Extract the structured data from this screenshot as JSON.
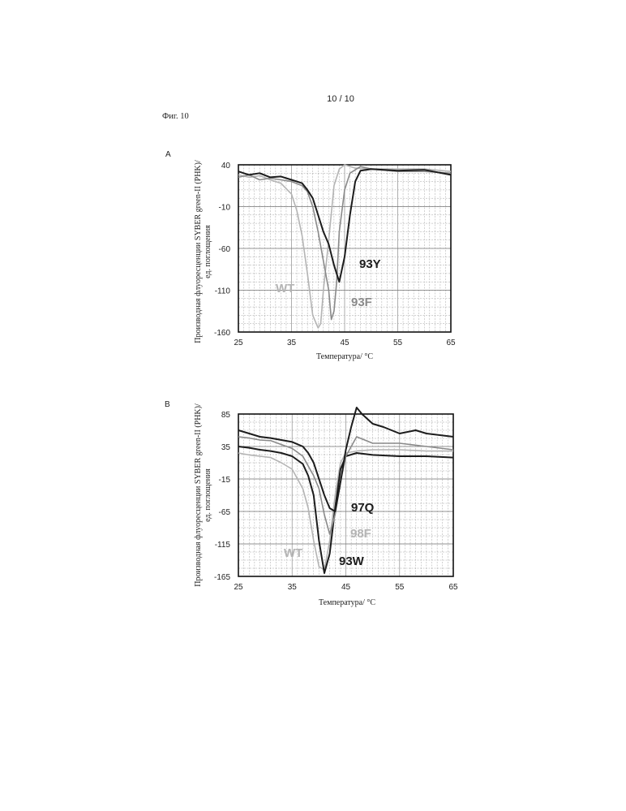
{
  "page": {
    "page_number": "10 / 10",
    "figure_label": "Фиг. 10"
  },
  "colors": {
    "dark": "#1c1c1c",
    "gray": "#8a8a8a",
    "lightgray": "#b4b4b4",
    "grid": "#9a9a9a"
  },
  "chart_data": [
    {
      "panel": "A",
      "type": "line",
      "xlabel": "Температура/ °C",
      "ylabel_line1": "Производная флуоресценции SYBER green-II (PHK)/",
      "ylabel_line2": "ед. поглощения",
      "xlim": [
        25,
        65
      ],
      "ylim": [
        -160,
        40
      ],
      "x_ticks": [
        "25",
        "35",
        "45",
        "55",
        "65"
      ],
      "y_ticks": [
        "40",
        "-10",
        "-60",
        "-110",
        "-160"
      ],
      "grid": true,
      "series": [
        {
          "name": "WT",
          "color": "lightgray",
          "x": [
            25,
            27,
            29,
            31,
            33,
            35,
            36,
            37,
            38,
            39,
            40,
            40.5,
            41,
            42,
            43,
            44,
            45,
            47,
            50,
            55,
            60,
            65
          ],
          "y": [
            28,
            25,
            27,
            22,
            18,
            5,
            -15,
            -45,
            -90,
            -140,
            -155,
            -150,
            -110,
            -50,
            15,
            35,
            40,
            36,
            35,
            35,
            35,
            32
          ]
        },
        {
          "name": "93F",
          "color": "gray",
          "x": [
            25,
            27,
            29,
            31,
            33,
            35,
            37,
            38,
            39,
            40,
            41,
            42,
            42.5,
            43,
            43.5,
            44,
            45,
            46,
            48,
            50,
            55,
            60,
            65
          ],
          "y": [
            25,
            28,
            22,
            24,
            22,
            20,
            15,
            8,
            -10,
            -40,
            -75,
            -110,
            -145,
            -135,
            -100,
            -40,
            10,
            30,
            38,
            35,
            32,
            32,
            30
          ]
        },
        {
          "name": "93Y",
          "color": "dark",
          "x": [
            25,
            27,
            29,
            31,
            33,
            35,
            36,
            37,
            38,
            39,
            40,
            41,
            42,
            43,
            44,
            45,
            46,
            47,
            48,
            50,
            55,
            60,
            65
          ],
          "y": [
            32,
            28,
            30,
            25,
            26,
            22,
            20,
            18,
            10,
            0,
            -20,
            -40,
            -55,
            -80,
            -100,
            -70,
            -20,
            20,
            33,
            35,
            33,
            34,
            28
          ]
        }
      ],
      "annotations": [
        "93Y",
        "93F",
        "WT"
      ]
    },
    {
      "panel": "B",
      "type": "line",
      "xlabel": "Температура/ °C",
      "ylabel_line1": "Производная флуоресценции SYBER green-II (PHK)/",
      "ylabel_line2": "ед. поглощения",
      "xlim": [
        25,
        65
      ],
      "ylim": [
        -165,
        85
      ],
      "x_ticks": [
        "25",
        "35",
        "45",
        "55",
        "65"
      ],
      "y_ticks": [
        "85",
        "35",
        "-15",
        "-65",
        "-115",
        "-165"
      ],
      "grid": true,
      "series": [
        {
          "name": "WT",
          "color": "lightgray",
          "x": [
            25,
            27,
            29,
            31,
            33,
            35,
            37,
            38,
            39,
            40,
            41,
            42,
            43,
            44,
            45,
            47,
            50,
            55,
            60,
            65
          ],
          "y": [
            25,
            22,
            20,
            18,
            10,
            0,
            -30,
            -60,
            -110,
            -150,
            -155,
            -110,
            -40,
            10,
            25,
            28,
            30,
            30,
            28,
            28
          ]
        },
        {
          "name": "93W",
          "color": "dark",
          "x": [
            25,
            27,
            29,
            31,
            33,
            35,
            37,
            38,
            39,
            40,
            41,
            42,
            43,
            44,
            45,
            47,
            50,
            55,
            60,
            65
          ],
          "y": [
            35,
            33,
            30,
            28,
            25,
            20,
            8,
            -10,
            -40,
            -110,
            -160,
            -130,
            -60,
            0,
            20,
            25,
            22,
            20,
            20,
            18
          ]
        },
        {
          "name": "98F",
          "color": "gray",
          "x": [
            25,
            27,
            29,
            31,
            33,
            35,
            37,
            38,
            39,
            40,
            41,
            42,
            43,
            44,
            45,
            47,
            50,
            55,
            60,
            65
          ],
          "y": [
            50,
            48,
            45,
            44,
            38,
            32,
            20,
            5,
            -10,
            -30,
            -70,
            -100,
            -70,
            -20,
            20,
            50,
            40,
            40,
            35,
            30
          ]
        },
        {
          "name": "97Q",
          "color": "dark",
          "x": [
            25,
            27,
            29,
            31,
            33,
            35,
            37,
            38,
            39,
            40,
            41,
            42,
            43,
            44,
            45,
            46,
            47,
            48,
            50,
            52,
            55,
            58,
            60,
            65
          ],
          "y": [
            60,
            55,
            50,
            48,
            45,
            42,
            35,
            25,
            10,
            -15,
            -40,
            -60,
            -65,
            -20,
            30,
            65,
            95,
            85,
            70,
            65,
            55,
            60,
            55,
            50
          ]
        }
      ],
      "annotations": [
        "97Q",
        "98F",
        "WT",
        "93W"
      ]
    }
  ],
  "panel_letters": {
    "a": "A",
    "b": "B"
  }
}
